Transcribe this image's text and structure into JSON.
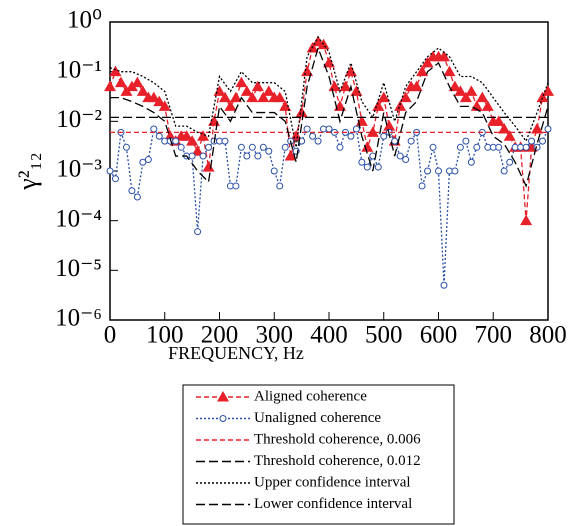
{
  "chart_data": {
    "type": "line",
    "xlabel": "FREQUENCY, Hz",
    "ylabel": "γ²₁₂",
    "log_y": true,
    "xlim": [
      0,
      800
    ],
    "xticks": [
      0,
      100,
      200,
      300,
      400,
      500,
      600,
      700,
      800
    ],
    "ylim": [
      1e-06,
      1
    ],
    "yticks": [
      {
        "value": 1,
        "label": "10⁰"
      },
      {
        "value": 0.1,
        "label": "10⁻¹"
      },
      {
        "value": 0.01,
        "label": "10⁻²"
      },
      {
        "value": 0.001,
        "label": "10⁻³"
      },
      {
        "value": 0.0001,
        "label": "10⁻⁴"
      },
      {
        "value": 1e-05,
        "label": "10⁻⁵"
      },
      {
        "value": 1e-06,
        "label": "10⁻⁶"
      }
    ],
    "x": [
      0,
      10,
      20,
      30,
      40,
      50,
      60,
      70,
      80,
      90,
      100,
      110,
      120,
      130,
      140,
      150,
      160,
      170,
      180,
      190,
      200,
      210,
      220,
      230,
      240,
      250,
      260,
      270,
      280,
      290,
      300,
      310,
      320,
      330,
      340,
      350,
      360,
      370,
      380,
      390,
      400,
      410,
      420,
      430,
      440,
      450,
      460,
      470,
      480,
      490,
      500,
      510,
      520,
      530,
      540,
      550,
      560,
      570,
      580,
      590,
      600,
      610,
      620,
      630,
      640,
      650,
      660,
      670,
      680,
      690,
      700,
      710,
      720,
      730,
      740,
      750,
      760,
      770,
      780,
      790,
      800
    ],
    "series": [
      {
        "name": "Aligned coherence",
        "color": "#e8202a",
        "line_style": "dashed",
        "marker": "triangle",
        "values": [
          0.05,
          0.1,
          0.06,
          0.04,
          0.05,
          0.06,
          0.04,
          0.03,
          0.03,
          0.025,
          0.02,
          0.005,
          0.004,
          0.005,
          0.005,
          0.004,
          0.0025,
          0.005,
          0.0012,
          0.01,
          0.04,
          0.03,
          0.02,
          0.03,
          0.06,
          0.04,
          0.03,
          0.05,
          0.03,
          0.04,
          0.03,
          0.03,
          0.02,
          0.002,
          0.005,
          0.015,
          0.1,
          0.3,
          0.4,
          0.35,
          0.15,
          0.05,
          0.02,
          0.05,
          0.1,
          0.04,
          0.01,
          0.003,
          0.006,
          0.02,
          0.03,
          0.008,
          0.004,
          0.02,
          0.03,
          0.05,
          0.05,
          0.1,
          0.15,
          0.2,
          0.2,
          0.2,
          0.1,
          0.05,
          0.04,
          0.03,
          0.04,
          0.02,
          0.03,
          0.02,
          0.01,
          0.01,
          0.007,
          0.005,
          0.003,
          0.003,
          0.0001,
          0.003,
          0.007,
          0.03,
          0.04
        ]
      },
      {
        "name": "Unaligned coherence",
        "color": "#2a4fa8",
        "line_style": "dotted",
        "marker": "circle",
        "values": [
          0.001,
          0.0007,
          0.006,
          0.003,
          0.0004,
          0.0003,
          0.0015,
          0.0017,
          0.007,
          0.005,
          0.004,
          0.004,
          0.004,
          0.003,
          0.002,
          0.002,
          6e-05,
          0.002,
          0.003,
          0.004,
          0.004,
          0.004,
          0.0005,
          0.0005,
          0.003,
          0.002,
          0.003,
          0.002,
          0.003,
          0.0025,
          0.001,
          0.0005,
          0.003,
          0.004,
          0.0025,
          0.004,
          0.007,
          0.005,
          0.004,
          0.007,
          0.007,
          0.006,
          0.003,
          0.006,
          0.005,
          0.007,
          0.0015,
          0.0012,
          0.002,
          0.0012,
          0.005,
          0.006,
          0.004,
          0.002,
          0.0017,
          0.004,
          0.006,
          0.0005,
          0.001,
          0.003,
          0.001,
          5e-06,
          0.001,
          0.001,
          0.003,
          0.004,
          0.0015,
          0.003,
          0.006,
          0.003,
          0.003,
          0.003,
          0.001,
          0.0015,
          0.003,
          0.003,
          0.003,
          0.004,
          0.003,
          0.004,
          0.007
        ]
      },
      {
        "name": "Threshold coherence, 0.006",
        "color": "#e8202a",
        "line_style": "dashed",
        "x": [
          0,
          800
        ],
        "values": [
          0.006,
          0.006
        ]
      },
      {
        "name": "Threshold coherence, 0.012",
        "color": "#000000",
        "line_style": "long-dashed",
        "x": [
          0,
          800
        ],
        "values": [
          0.012,
          0.012
        ]
      },
      {
        "name": "Upper confidence interval",
        "color": "#000000",
        "line_style": "dotted",
        "x": [
          0,
          20,
          40,
          60,
          80,
          100,
          120,
          140,
          160,
          180,
          200,
          220,
          240,
          260,
          280,
          300,
          320,
          340,
          360,
          380,
          400,
          420,
          440,
          460,
          480,
          500,
          520,
          540,
          560,
          580,
          600,
          620,
          640,
          660,
          680,
          700,
          720,
          740,
          760,
          780,
          800
        ],
        "values": [
          0.12,
          0.1,
          0.1,
          0.08,
          0.06,
          0.04,
          0.008,
          0.008,
          0.006,
          0.005,
          0.08,
          0.04,
          0.1,
          0.06,
          0.06,
          0.06,
          0.04,
          0.003,
          0.2,
          0.5,
          0.25,
          0.04,
          0.15,
          0.025,
          0.012,
          0.06,
          0.01,
          0.05,
          0.1,
          0.2,
          0.3,
          0.2,
          0.08,
          0.08,
          0.06,
          0.03,
          0.015,
          0.008,
          0.004,
          0.015,
          0.06
        ]
      },
      {
        "name": "Lower confidence interval",
        "color": "#000000",
        "line_style": "long-dashed",
        "x": [
          0,
          20,
          40,
          60,
          80,
          100,
          120,
          140,
          160,
          180,
          200,
          220,
          240,
          260,
          280,
          300,
          320,
          340,
          360,
          380,
          400,
          420,
          440,
          460,
          480,
          500,
          520,
          540,
          560,
          580,
          600,
          620,
          640,
          660,
          680,
          700,
          720,
          740,
          760,
          780,
          800
        ],
        "values": [
          0.03,
          0.03,
          0.025,
          0.02,
          0.015,
          0.01,
          0.002,
          0.002,
          0.001,
          0.0006,
          0.02,
          0.01,
          0.03,
          0.015,
          0.015,
          0.015,
          0.01,
          0.0015,
          0.05,
          0.3,
          0.08,
          0.01,
          0.05,
          0.005,
          0.001,
          0.015,
          0.002,
          0.015,
          0.025,
          0.1,
          0.15,
          0.05,
          0.02,
          0.02,
          0.015,
          0.005,
          0.0035,
          0.0015,
          0.0005,
          0.0035,
          0.02
        ]
      }
    ]
  }
}
